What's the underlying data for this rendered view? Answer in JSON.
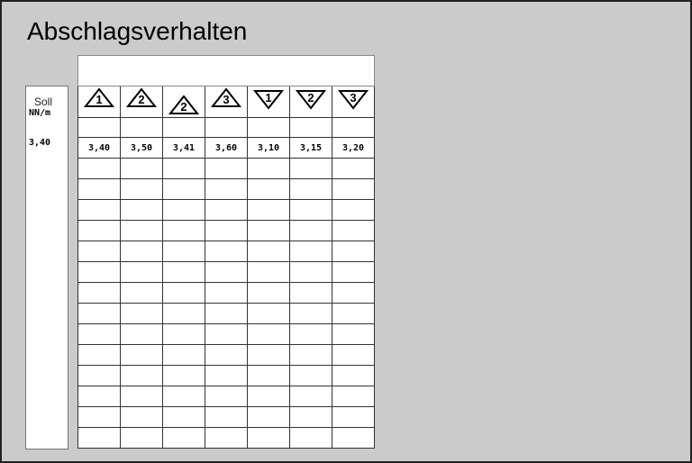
{
  "title": "Abschlagsverhalten",
  "soll": {
    "label": "Soll",
    "unit": "NN/m",
    "value": "3,40"
  },
  "columns": [
    {
      "direction": "up",
      "number": "1",
      "value": "3,40"
    },
    {
      "direction": "up",
      "number": "2",
      "value": "3,50"
    },
    {
      "direction": "up",
      "number": "2",
      "value": "3,41"
    },
    {
      "direction": "up",
      "number": "3",
      "value": "3,60"
    },
    {
      "direction": "down",
      "number": "1",
      "value": "3,10"
    },
    {
      "direction": "down",
      "number": "2",
      "value": "3,15"
    },
    {
      "direction": "down",
      "number": "3",
      "value": "3,20"
    }
  ],
  "empty_rows": 14
}
